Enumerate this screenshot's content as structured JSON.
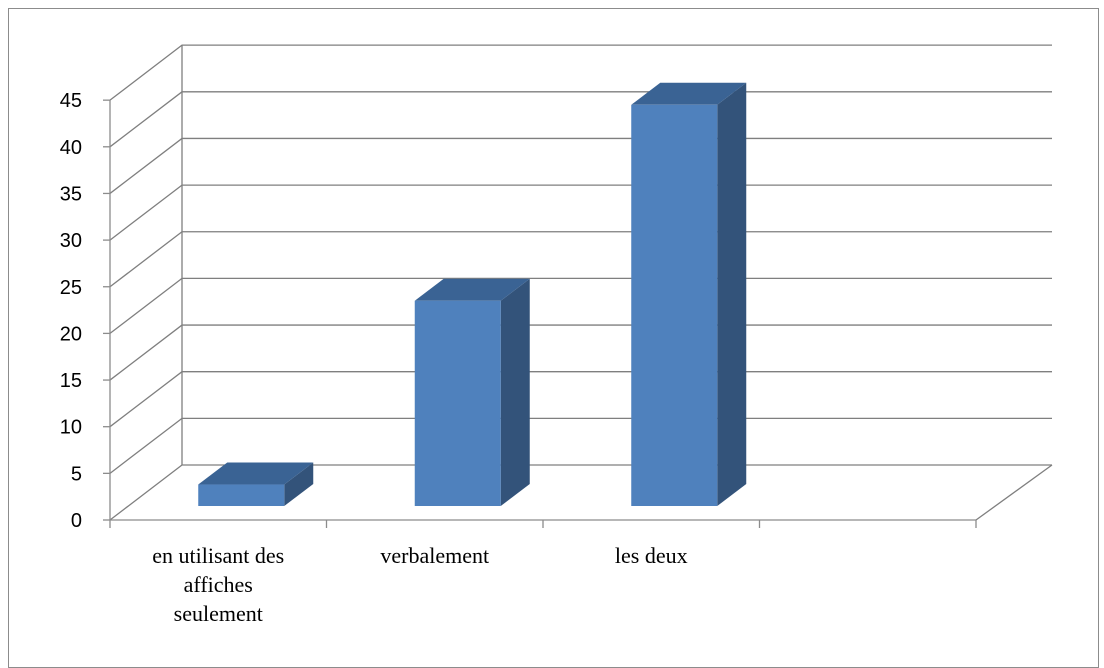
{
  "chart_data": {
    "type": "bar",
    "style": "3d-column",
    "categories": [
      "en utilisant des affiches seulement",
      "verbalement",
      "les deux",
      ""
    ],
    "category_label_lines": [
      [
        "en utilisant des",
        "affiches",
        "seulement"
      ],
      [
        "verbalement"
      ],
      [
        "les deux"
      ],
      []
    ],
    "values": [
      2.3,
      22,
      43,
      null
    ],
    "ylim": [
      0,
      45
    ],
    "yticks": [
      0,
      5,
      10,
      15,
      20,
      25,
      30,
      35,
      40,
      45
    ],
    "title": "",
    "xlabel": "",
    "ylabel": "",
    "grid": true,
    "legend": "none",
    "colors": {
      "bar_front": "#4f81bd",
      "bar_side": "#33537a",
      "bar_top": "#3a6394",
      "grid": "#7f7f7f"
    }
  }
}
